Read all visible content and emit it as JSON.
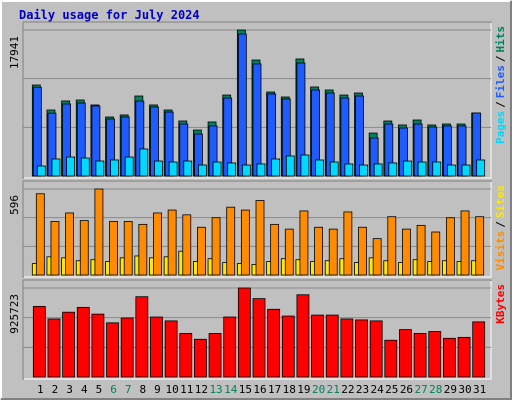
{
  "title": "Daily usage for July 2024",
  "legend_separator": "/",
  "chart_data": [
    {
      "type": "bar",
      "series": [
        {
          "name": "Hits",
          "color": "#00805c",
          "values": [
            11180,
            8110,
            9220,
            9340,
            8730,
            7250,
            7500,
            9830,
            8730,
            8110,
            6760,
            5650,
            6640,
            9950,
            17941,
            14250,
            10320,
            9710,
            14380,
            10940,
            10570,
            9950,
            10200,
            5280,
            6760,
            6270,
            6880,
            6270,
            6390,
            6390,
            7740
          ]
        },
        {
          "name": "Files",
          "color": "#1f5cff",
          "values": [
            10900,
            7720,
            8850,
            8970,
            8600,
            7000,
            7250,
            9210,
            8480,
            7860,
            6390,
            5160,
            6150,
            9580,
            17450,
            13770,
            10080,
            9460,
            13890,
            10570,
            10200,
            9580,
            9830,
            4670,
            6390,
            5900,
            6390,
            6020,
            6150,
            6150,
            7740
          ]
        },
        {
          "name": "Pages",
          "color": "#00d8ff",
          "values": [
            1230,
            2090,
            2330,
            2210,
            1840,
            1970,
            2330,
            3320,
            1840,
            1720,
            1840,
            1350,
            1720,
            1600,
            1350,
            1480,
            2090,
            2460,
            2580,
            1970,
            1720,
            1480,
            1350,
            1480,
            1600,
            1840,
            1720,
            1720,
            1350,
            1350,
            1970
          ]
        }
      ],
      "ylim": [
        0,
        17941
      ],
      "yticks": [
        17941
      ],
      "grid": true
    },
    {
      "type": "bar",
      "series": [
        {
          "name": "Sites",
          "color": "#ffe800",
          "values": [
            79,
            126,
            119,
            99,
            106,
            93,
            119,
            132,
            119,
            126,
            165,
            93,
            113,
            86,
            79,
            73,
            93,
            113,
            106,
            93,
            99,
            113,
            86,
            119,
            99,
            86,
            106,
            93,
            99,
            93,
            99
          ]
        },
        {
          "name": "Visits",
          "color": "#ff8c00",
          "values": [
            563,
            371,
            430,
            377,
            596,
            371,
            371,
            351,
            430,
            450,
            417,
            331,
            397,
            470,
            450,
            516,
            351,
            318,
            444,
            331,
            318,
            437,
            331,
            252,
            404,
            318,
            344,
            298,
            397,
            444,
            404
          ]
        }
      ],
      "ylim": [
        0,
        596
      ],
      "yticks": [
        596
      ],
      "grid": true
    },
    {
      "type": "bar",
      "series": [
        {
          "name": "KBytes",
          "color": "#ff0000",
          "values": [
            734500,
            603700,
            674200,
            724500,
            654000,
            563500,
            613800,
            835100,
            623800,
            583600,
            452800,
            392400,
            452800,
            623800,
            925723,
            815000,
            704300,
            633900,
            855300,
            644000,
            644000,
            603700,
            593700,
            583600,
            382400,
            493000,
            452800,
            472900,
            402500,
            412500,
            573500
          ]
        }
      ],
      "ylim": [
        0,
        925723
      ],
      "yticks": [
        925723
      ],
      "grid": true,
      "categories": [
        "1",
        "2",
        "3",
        "4",
        "5",
        "6",
        "7",
        "8",
        "9",
        "10",
        "11",
        "12",
        "13",
        "14",
        "15",
        "16",
        "17",
        "18",
        "19",
        "20",
        "21",
        "22",
        "23",
        "24",
        "25",
        "26",
        "27",
        "28",
        "29",
        "30",
        "31"
      ],
      "category_colors": [
        "#000000",
        "#000000",
        "#000000",
        "#000000",
        "#000000",
        "#00805c",
        "#00805c",
        "#000000",
        "#000000",
        "#000000",
        "#000000",
        "#000000",
        "#00805c",
        "#00805c",
        "#000000",
        "#000000",
        "#000000",
        "#000000",
        "#000000",
        "#00805c",
        "#00805c",
        "#000000",
        "#000000",
        "#000000",
        "#000000",
        "#000000",
        "#00805c",
        "#00805c",
        "#000000",
        "#000000",
        "#000000"
      ]
    }
  ]
}
